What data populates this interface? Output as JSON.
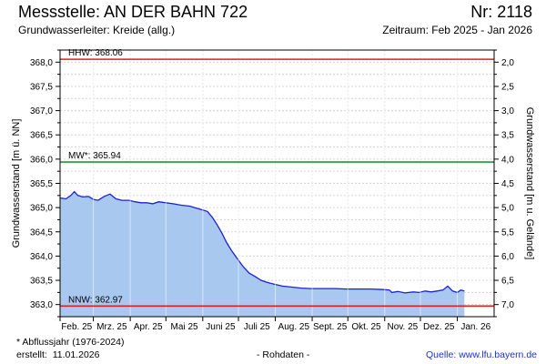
{
  "header": {
    "title": "Messstelle: AN DER BAHN 722",
    "number": "Nr: 2118",
    "aquifer": "Grundwasserleiter: Kreide (allg.)",
    "period": "Zeitraum: Feb 2025 - Jan 2026"
  },
  "footer": {
    "footnote": "* Abflussjahr (1976-2024)",
    "created_label": "erstellt:",
    "created_date": "11.01.2026",
    "raw_note": "- Rohdaten -",
    "source_label": "Quelle:",
    "source_url": "www.lfu.bayern.de"
  },
  "chart_data": {
    "type": "area",
    "ylabel_left": "Grundwasserstand [m ü. NN]",
    "ylabel_right": "Grundwasserstand [m u. Gelände]",
    "ylim": [
      362.75,
      368.25
    ],
    "yticks_left": [
      "363,0",
      "363,5",
      "364,0",
      "364,5",
      "365,0",
      "365,5",
      "366,0",
      "366,5",
      "367,0",
      "367,5",
      "368,0"
    ],
    "yticks_right": [
      "7,0",
      "6,5",
      "6,0",
      "5,5",
      "5,0",
      "4,5",
      "4,0",
      "3,5",
      "3,0",
      "2,5",
      "2,0"
    ],
    "xlim": [
      "2025-02-01",
      "2026-01-31"
    ],
    "xticks": [
      "Feb. 25",
      "Mrz. 25",
      "Apr. 25",
      "Mai 25",
      "Juni 25",
      "Juli 25",
      "Aug. 25",
      "Sept. 25",
      "Okt. 25",
      "Nov. 25",
      "Dez. 25",
      "Jan. 26"
    ],
    "grid": true,
    "reference_lines": [
      {
        "label": "HHW: 368.06",
        "value": 368.06,
        "color": "#e02020"
      },
      {
        "label": "MW*: 365.94",
        "value": 365.94,
        "color": "#1f9a1f"
      },
      {
        "label": "NNW: 362.97",
        "value": 362.97,
        "color": "#e02020"
      }
    ],
    "series": [
      {
        "color": "#1a22d6",
        "fill": "#a8c8f0",
        "points": [
          [
            "2025-02-01",
            365.2
          ],
          [
            "2025-02-06",
            365.18
          ],
          [
            "2025-02-10",
            365.25
          ],
          [
            "2025-02-13",
            365.33
          ],
          [
            "2025-02-16",
            365.25
          ],
          [
            "2025-02-20",
            365.22
          ],
          [
            "2025-02-25",
            365.23
          ],
          [
            "2025-03-01",
            365.17
          ],
          [
            "2025-03-05",
            365.15
          ],
          [
            "2025-03-10",
            365.23
          ],
          [
            "2025-03-15",
            365.28
          ],
          [
            "2025-03-20",
            365.18
          ],
          [
            "2025-03-25",
            365.15
          ],
          [
            "2025-03-31",
            365.15
          ],
          [
            "2025-04-05",
            365.12
          ],
          [
            "2025-04-10",
            365.1
          ],
          [
            "2025-04-15",
            365.1
          ],
          [
            "2025-04-20",
            365.08
          ],
          [
            "2025-04-25",
            365.12
          ],
          [
            "2025-05-01",
            365.1
          ],
          [
            "2025-05-07",
            365.08
          ],
          [
            "2025-05-14",
            365.05
          ],
          [
            "2025-05-21",
            365.03
          ],
          [
            "2025-05-28",
            364.98
          ],
          [
            "2025-06-01",
            364.95
          ],
          [
            "2025-06-05",
            364.92
          ],
          [
            "2025-06-09",
            364.8
          ],
          [
            "2025-06-13",
            364.65
          ],
          [
            "2025-06-17",
            364.48
          ],
          [
            "2025-06-21",
            364.28
          ],
          [
            "2025-06-25",
            364.12
          ],
          [
            "2025-06-30",
            363.95
          ],
          [
            "2025-07-05",
            363.78
          ],
          [
            "2025-07-10",
            363.65
          ],
          [
            "2025-07-15",
            363.58
          ],
          [
            "2025-07-20",
            363.5
          ],
          [
            "2025-07-25",
            363.46
          ],
          [
            "2025-07-31",
            363.42
          ],
          [
            "2025-08-07",
            363.38
          ],
          [
            "2025-08-15",
            363.36
          ],
          [
            "2025-08-23",
            363.34
          ],
          [
            "2025-08-31",
            363.33
          ],
          [
            "2025-09-10",
            363.33
          ],
          [
            "2025-09-20",
            363.33
          ],
          [
            "2025-09-30",
            363.32
          ],
          [
            "2025-10-10",
            363.32
          ],
          [
            "2025-10-20",
            363.32
          ],
          [
            "2025-10-31",
            363.31
          ],
          [
            "2025-11-05",
            363.3
          ],
          [
            "2025-11-07",
            363.25
          ],
          [
            "2025-11-12",
            363.27
          ],
          [
            "2025-11-18",
            363.24
          ],
          [
            "2025-11-25",
            363.26
          ],
          [
            "2025-11-30",
            363.25
          ],
          [
            "2025-12-05",
            363.28
          ],
          [
            "2025-12-10",
            363.26
          ],
          [
            "2025-12-15",
            363.28
          ],
          [
            "2025-12-20",
            363.3
          ],
          [
            "2025-12-24",
            363.38
          ],
          [
            "2025-12-28",
            363.28
          ],
          [
            "2026-01-01",
            363.25
          ],
          [
            "2026-01-04",
            363.3
          ],
          [
            "2026-01-07",
            363.28
          ]
        ]
      }
    ]
  }
}
